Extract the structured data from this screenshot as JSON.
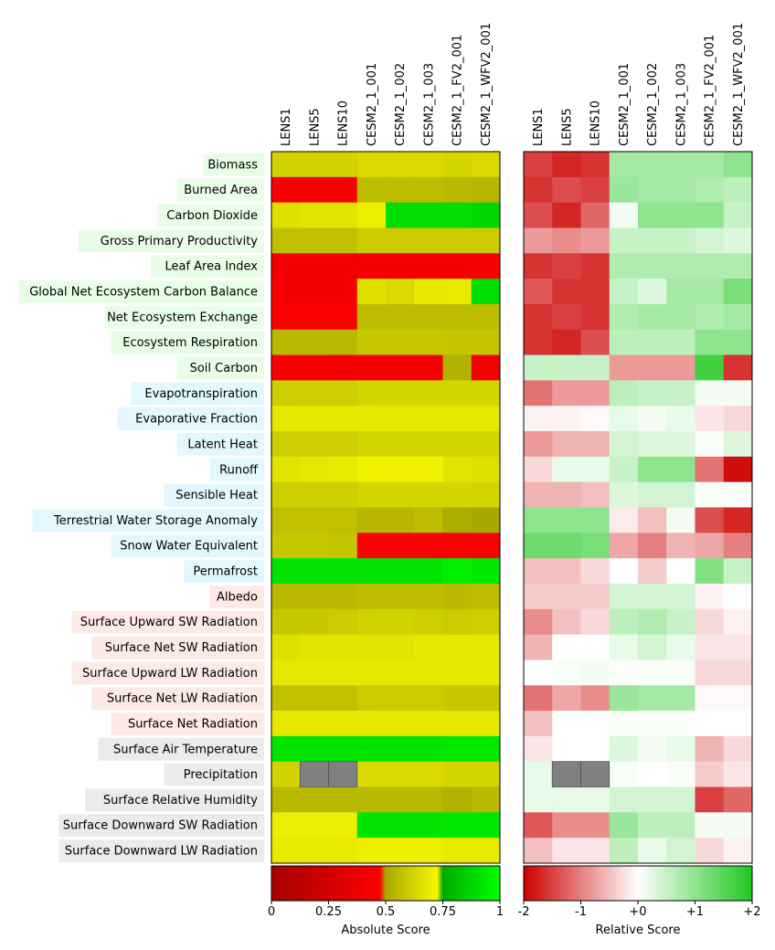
{
  "chart_data": {
    "type": "heatmap",
    "models": [
      "LENS1",
      "LENS5",
      "LENS10",
      "CESM2_1_001",
      "CESM2_1_002",
      "CESM2_1_003",
      "CESM2_1_FV2_001",
      "CESM2_1_WFV2_001"
    ],
    "variables": [
      {
        "name": "Biomass",
        "category": "ecosystem",
        "color": "#e8fde6"
      },
      {
        "name": "Burned Area",
        "category": "ecosystem",
        "color": "#e8fde6"
      },
      {
        "name": "Carbon Dioxide",
        "category": "ecosystem",
        "color": "#e8fde6"
      },
      {
        "name": "Gross Primary Productivity",
        "category": "ecosystem",
        "color": "#e8fde6"
      },
      {
        "name": "Leaf Area Index",
        "category": "ecosystem",
        "color": "#e8fde6"
      },
      {
        "name": "Global Net Ecosystem Carbon Balance",
        "category": "ecosystem",
        "color": "#e8fde6"
      },
      {
        "name": "Net Ecosystem Exchange",
        "category": "ecosystem",
        "color": "#e8fde6"
      },
      {
        "name": "Ecosystem Respiration",
        "category": "ecosystem",
        "color": "#e8fde6"
      },
      {
        "name": "Soil Carbon",
        "category": "ecosystem",
        "color": "#e8fde6"
      },
      {
        "name": "Evapotranspiration",
        "category": "hydrology",
        "color": "#e3f7fe"
      },
      {
        "name": "Evaporative Fraction",
        "category": "hydrology",
        "color": "#e3f7fe"
      },
      {
        "name": "Latent Heat",
        "category": "hydrology",
        "color": "#e3f7fe"
      },
      {
        "name": "Runoff",
        "category": "hydrology",
        "color": "#e3f7fe"
      },
      {
        "name": "Sensible Heat",
        "category": "hydrology",
        "color": "#e3f7fe"
      },
      {
        "name": "Terrestrial Water Storage Anomaly",
        "category": "hydrology",
        "color": "#e3f7fe"
      },
      {
        "name": "Snow Water Equivalent",
        "category": "hydrology",
        "color": "#e3f7fe"
      },
      {
        "name": "Permafrost",
        "category": "hydrology",
        "color": "#e3f7fe"
      },
      {
        "name": "Albedo",
        "category": "radiation",
        "color": "#fde9e5"
      },
      {
        "name": "Surface Upward SW Radiation",
        "category": "radiation",
        "color": "#fde9e5"
      },
      {
        "name": "Surface Net SW Radiation",
        "category": "radiation",
        "color": "#fde9e5"
      },
      {
        "name": "Surface Upward LW Radiation",
        "category": "radiation",
        "color": "#fde9e5"
      },
      {
        "name": "Surface Net LW Radiation",
        "category": "radiation",
        "color": "#fde9e5"
      },
      {
        "name": "Surface Net Radiation",
        "category": "radiation",
        "color": "#fde9e5"
      },
      {
        "name": "Surface Air Temperature",
        "category": "forcing",
        "color": "#ebebeb"
      },
      {
        "name": "Precipitation",
        "category": "forcing",
        "color": "#ebebeb"
      },
      {
        "name": "Surface Relative Humidity",
        "category": "forcing",
        "color": "#ebebeb"
      },
      {
        "name": "Surface Downward SW Radiation",
        "category": "forcing",
        "color": "#ebebeb"
      },
      {
        "name": "Surface Downward LW Radiation",
        "category": "forcing",
        "color": "#ebebeb"
      }
    ],
    "absolute_scores": [
      [
        0.62,
        0.62,
        0.62,
        0.64,
        0.64,
        0.64,
        0.63,
        0.64
      ],
      [
        0.45,
        0.45,
        0.45,
        0.56,
        0.56,
        0.56,
        0.55,
        0.54
      ],
      [
        0.66,
        0.67,
        0.67,
        0.7,
        0.9,
        0.9,
        0.9,
        0.88
      ],
      [
        0.57,
        0.57,
        0.57,
        0.6,
        0.6,
        0.6,
        0.6,
        0.6
      ],
      [
        0.44,
        0.44,
        0.44,
        0.46,
        0.46,
        0.46,
        0.46,
        0.46
      ],
      [
        0.46,
        0.45,
        0.45,
        0.66,
        0.64,
        0.68,
        0.69,
        0.9
      ],
      [
        0.47,
        0.47,
        0.47,
        0.56,
        0.56,
        0.56,
        0.56,
        0.56
      ],
      [
        0.55,
        0.55,
        0.55,
        0.59,
        0.59,
        0.59,
        0.58,
        0.58
      ],
      [
        0.46,
        0.46,
        0.44,
        0.44,
        0.44,
        0.44,
        0.53,
        0.43
      ],
      [
        0.61,
        0.61,
        0.61,
        0.63,
        0.63,
        0.63,
        0.63,
        0.63
      ],
      [
        0.68,
        0.68,
        0.68,
        0.68,
        0.68,
        0.68,
        0.68,
        0.68
      ],
      [
        0.61,
        0.61,
        0.61,
        0.63,
        0.63,
        0.63,
        0.63,
        0.63
      ],
      [
        0.67,
        0.68,
        0.69,
        0.71,
        0.71,
        0.71,
        0.67,
        0.66
      ],
      [
        0.61,
        0.61,
        0.61,
        0.63,
        0.63,
        0.63,
        0.63,
        0.63
      ],
      [
        0.57,
        0.57,
        0.57,
        0.54,
        0.54,
        0.56,
        0.51,
        0.5
      ],
      [
        0.59,
        0.59,
        0.58,
        0.47,
        0.47,
        0.47,
        0.47,
        0.47
      ],
      [
        0.92,
        0.92,
        0.92,
        0.92,
        0.92,
        0.92,
        0.95,
        0.93
      ],
      [
        0.55,
        0.55,
        0.55,
        0.56,
        0.56,
        0.56,
        0.55,
        0.56
      ],
      [
        0.59,
        0.59,
        0.6,
        0.62,
        0.62,
        0.61,
        0.6,
        0.61
      ],
      [
        0.66,
        0.67,
        0.67,
        0.67,
        0.67,
        0.68,
        0.68,
        0.68
      ],
      [
        0.68,
        0.68,
        0.68,
        0.68,
        0.68,
        0.68,
        0.68,
        0.68
      ],
      [
        0.57,
        0.57,
        0.57,
        0.6,
        0.6,
        0.6,
        0.59,
        0.59
      ],
      [
        0.68,
        0.68,
        0.68,
        0.68,
        0.68,
        0.68,
        0.68,
        0.68
      ],
      [
        0.92,
        0.92,
        0.92,
        0.92,
        0.92,
        0.92,
        0.93,
        0.93
      ],
      [
        0.62,
        null,
        null,
        0.64,
        0.64,
        0.64,
        0.63,
        0.63
      ],
      [
        0.55,
        0.55,
        0.55,
        0.55,
        0.55,
        0.55,
        0.53,
        0.55
      ],
      [
        0.7,
        0.7,
        0.7,
        0.92,
        0.92,
        0.92,
        0.93,
        0.93
      ],
      [
        0.69,
        0.69,
        0.69,
        0.7,
        0.7,
        0.7,
        0.69,
        0.69
      ]
    ],
    "relative_scores": [
      [
        -1.5,
        -1.7,
        -1.6,
        0.8,
        0.8,
        0.8,
        0.8,
        1.0
      ],
      [
        -1.6,
        -1.4,
        -1.5,
        0.9,
        0.8,
        0.8,
        0.7,
        0.6
      ],
      [
        -1.4,
        -1.7,
        -1.2,
        0.1,
        1.0,
        1.0,
        1.0,
        0.5
      ],
      [
        -0.8,
        -0.9,
        -0.8,
        0.5,
        0.5,
        0.5,
        0.4,
        0.3
      ],
      [
        -1.6,
        -1.5,
        -1.6,
        0.7,
        0.7,
        0.7,
        0.7,
        0.7
      ],
      [
        -1.3,
        -1.6,
        -1.6,
        0.5,
        0.3,
        0.8,
        0.8,
        1.2
      ],
      [
        -1.6,
        -1.5,
        -1.6,
        0.7,
        0.8,
        0.8,
        0.7,
        0.8
      ],
      [
        -1.6,
        -1.7,
        -1.4,
        0.6,
        0.6,
        0.6,
        1.0,
        1.0
      ],
      [
        0.5,
        0.5,
        0.5,
        -0.8,
        -0.8,
        -0.8,
        1.7,
        -1.6
      ],
      [
        -1.1,
        -0.8,
        -0.8,
        0.6,
        0.5,
        0.5,
        0.1,
        0.1
      ],
      [
        -0.1,
        -0.1,
        -0.05,
        0.2,
        0.1,
        0.2,
        -0.2,
        -0.3
      ],
      [
        -0.8,
        -0.6,
        -0.6,
        0.4,
        0.3,
        0.3,
        0.05,
        0.3
      ],
      [
        -0.3,
        0.2,
        0.2,
        0.5,
        1.0,
        1.0,
        -1.1,
        -1.9
      ],
      [
        -0.6,
        -0.6,
        -0.5,
        0.3,
        0.4,
        0.4,
        0.05,
        0.05
      ],
      [
        1.0,
        1.0,
        1.0,
        -0.15,
        -0.5,
        0.1,
        -1.4,
        -1.7
      ],
      [
        1.3,
        1.3,
        1.2,
        -0.7,
        -1.0,
        -0.6,
        -0.7,
        -1.0
      ],
      [
        -0.5,
        -0.5,
        -0.3,
        0.0,
        -0.4,
        0.0,
        1.1,
        0.5
      ],
      [
        -0.4,
        -0.4,
        -0.4,
        0.4,
        0.4,
        0.4,
        -0.1,
        0.0
      ],
      [
        -0.9,
        -0.5,
        -0.3,
        0.6,
        0.7,
        0.5,
        -0.3,
        -0.1
      ],
      [
        -0.6,
        0.0,
        0.0,
        0.2,
        0.4,
        0.2,
        -0.2,
        -0.2
      ],
      [
        0.0,
        0.05,
        0.1,
        0.05,
        0.05,
        0.05,
        -0.3,
        -0.3
      ],
      [
        -1.1,
        -0.7,
        -0.9,
        0.9,
        0.8,
        0.8,
        -0.05,
        -0.05
      ],
      [
        -0.5,
        0.0,
        0.0,
        0.05,
        0.05,
        0.05,
        0.0,
        0.0
      ],
      [
        -0.2,
        0.0,
        0.0,
        0.3,
        0.1,
        0.2,
        -0.6,
        -0.3
      ],
      [
        0.2,
        null,
        null,
        0.05,
        0.0,
        0.05,
        -0.4,
        -0.2
      ],
      [
        0.2,
        0.2,
        0.2,
        0.4,
        0.4,
        0.4,
        -1.5,
        -1.2
      ],
      [
        -1.3,
        -0.9,
        -0.9,
        0.9,
        0.6,
        0.6,
        0.1,
        0.1
      ],
      [
        -0.5,
        -0.2,
        -0.2,
        0.6,
        0.2,
        0.4,
        -0.3,
        -0.1
      ]
    ],
    "absolute_colorbar": {
      "label": "Absolute Score",
      "ticks": [
        "0",
        "0.25",
        "0.5",
        "0.75",
        "1"
      ],
      "range": [
        0,
        1
      ]
    },
    "relative_colorbar": {
      "label": "Relative Score",
      "ticks": [
        "-2",
        "-1",
        "+0",
        "+1",
        "+2"
      ],
      "range": [
        -2,
        2
      ]
    },
    "missing_color": "#808080"
  }
}
